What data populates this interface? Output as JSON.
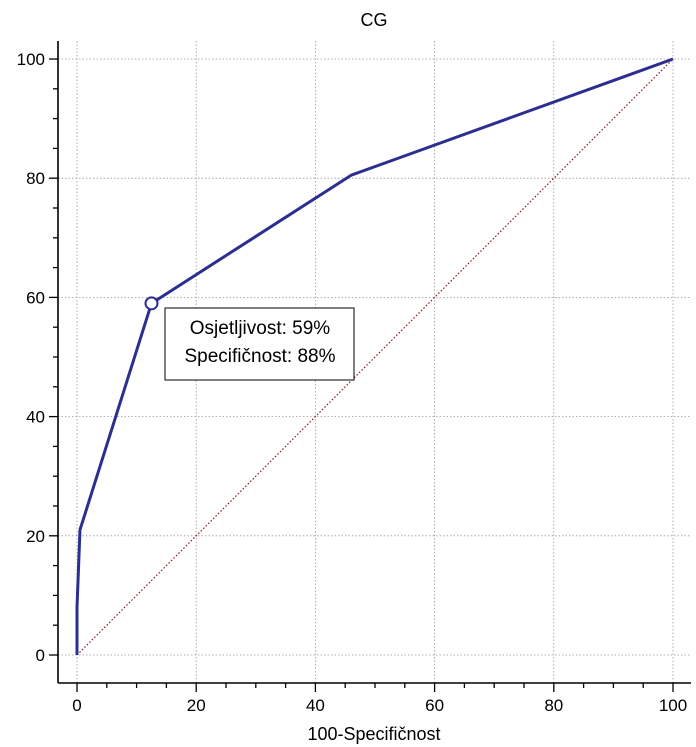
{
  "chart_data": {
    "type": "line",
    "title": "CG",
    "xlabel": "100-Specifičnost",
    "ylabel": "",
    "xlim": [
      0,
      100
    ],
    "ylim": [
      0,
      100
    ],
    "x_ticks": [
      0,
      20,
      40,
      60,
      80,
      100
    ],
    "y_ticks": [
      0,
      20,
      40,
      60,
      80,
      100
    ],
    "x_tick_labels": [
      "0",
      "20",
      "40",
      "60",
      "80",
      "100"
    ],
    "y_tick_labels": [
      "0",
      "20",
      "40",
      "60",
      "80",
      "100"
    ],
    "grid": true,
    "series": [
      {
        "color": "#2b2f8f",
        "style": "solid",
        "x": [
          0,
          0,
          0.5,
          12.5,
          46,
          100
        ],
        "y": [
          0,
          8,
          21,
          59,
          80.5,
          100
        ]
      },
      {
        "color": "#8b1a1a",
        "style": "dotted",
        "x": [
          0,
          100
        ],
        "y": [
          0,
          100
        ]
      }
    ],
    "marker": {
      "x": 12.5,
      "y": 59
    },
    "annotation": {
      "lines": [
        "Osjetljivost: 59%",
        "Specifičnost: 88%"
      ]
    }
  }
}
